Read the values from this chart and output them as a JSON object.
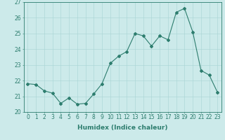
{
  "x": [
    0,
    1,
    2,
    3,
    4,
    5,
    6,
    7,
    8,
    9,
    10,
    11,
    12,
    13,
    14,
    15,
    16,
    17,
    18,
    19,
    20,
    21,
    22,
    23
  ],
  "y": [
    21.8,
    21.75,
    21.35,
    21.2,
    20.55,
    20.9,
    20.5,
    20.55,
    21.15,
    21.8,
    23.1,
    23.55,
    23.85,
    25.0,
    24.85,
    24.2,
    24.85,
    24.6,
    26.35,
    26.6,
    25.1,
    22.65,
    22.35,
    21.25
  ],
  "line_color": "#2d7d6e",
  "marker": "D",
  "marker_size": 2,
  "bg_color": "#cceaea",
  "grid_color": "#a8d4d4",
  "xlabel": "Humidex (Indice chaleur)",
  "xlim": [
    -0.5,
    23.5
  ],
  "ylim": [
    20,
    27
  ],
  "yticks": [
    20,
    21,
    22,
    23,
    24,
    25,
    26,
    27
  ],
  "xticks": [
    0,
    1,
    2,
    3,
    4,
    5,
    6,
    7,
    8,
    9,
    10,
    11,
    12,
    13,
    14,
    15,
    16,
    17,
    18,
    19,
    20,
    21,
    22,
    23
  ],
  "label_fontsize": 6.5,
  "tick_fontsize": 5.5
}
